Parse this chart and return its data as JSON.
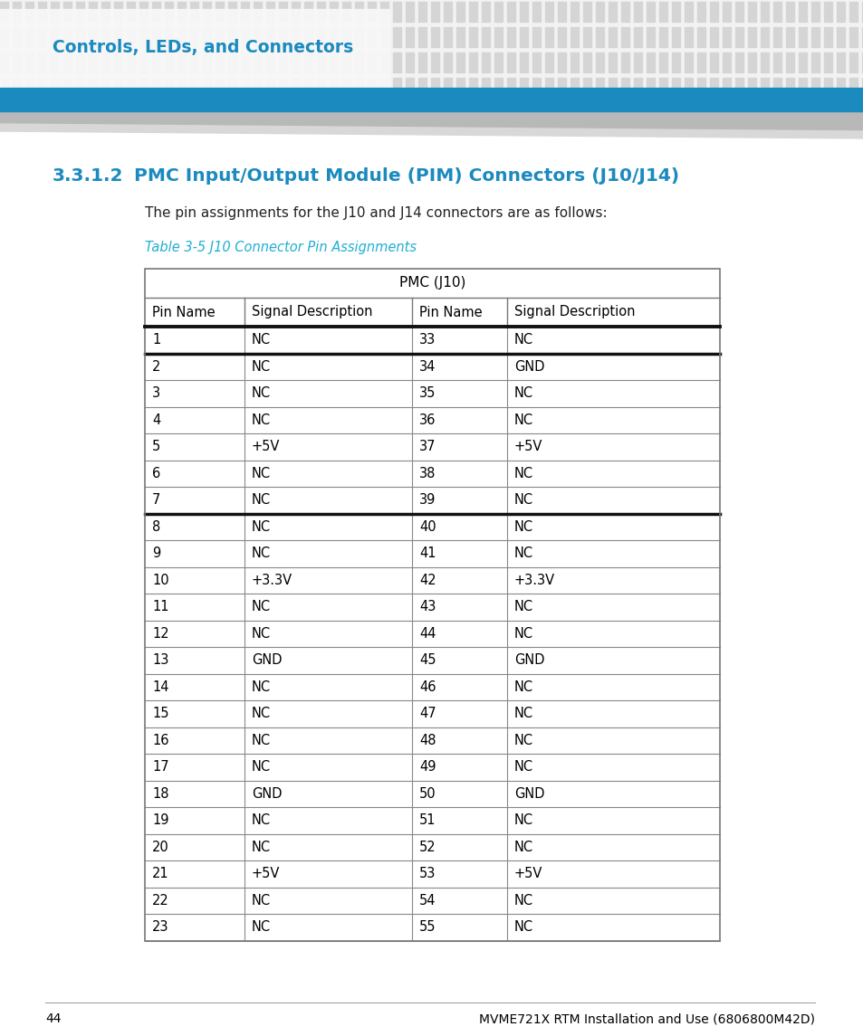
{
  "page_header": "Controls, LEDs, and Connectors",
  "section_num": "3.3.1.2",
  "section_title": "PMC Input/Output Module (PIM) Connectors (J10/J14)",
  "body_text": "The pin assignments for the J10 and J14 connectors are as follows:",
  "table_caption": "Table 3-5 J10 Connector Pin Assignments",
  "table_header_main": "PMC (J10)",
  "col_headers": [
    "Pin Name",
    "Signal Description",
    "Pin Name",
    "Signal Description"
  ],
  "rows": [
    [
      "1",
      "NC",
      "33",
      "NC"
    ],
    [
      "2",
      "NC",
      "34",
      "GND"
    ],
    [
      "3",
      "NC",
      "35",
      "NC"
    ],
    [
      "4",
      "NC",
      "36",
      "NC"
    ],
    [
      "5",
      "+5V",
      "37",
      "+5V"
    ],
    [
      "6",
      "NC",
      "38",
      "NC"
    ],
    [
      "7",
      "NC",
      "39",
      "NC"
    ],
    [
      "8",
      "NC",
      "40",
      "NC"
    ],
    [
      "9",
      "NC",
      "41",
      "NC"
    ],
    [
      "10",
      "+3.3V",
      "42",
      "+3.3V"
    ],
    [
      "11",
      "NC",
      "43",
      "NC"
    ],
    [
      "12",
      "NC",
      "44",
      "NC"
    ],
    [
      "13",
      "GND",
      "45",
      "GND"
    ],
    [
      "14",
      "NC",
      "46",
      "NC"
    ],
    [
      "15",
      "NC",
      "47",
      "NC"
    ],
    [
      "16",
      "NC",
      "48",
      "NC"
    ],
    [
      "17",
      "NC",
      "49",
      "NC"
    ],
    [
      "18",
      "GND",
      "50",
      "GND"
    ],
    [
      "19",
      "NC",
      "51",
      "NC"
    ],
    [
      "20",
      "NC",
      "52",
      "NC"
    ],
    [
      "21",
      "+5V",
      "53",
      "+5V"
    ],
    [
      "22",
      "NC",
      "54",
      "NC"
    ],
    [
      "23",
      "NC",
      "55",
      "NC"
    ]
  ],
  "thick_rows_after": [
    0,
    6
  ],
  "page_num": "44",
  "footer_text": "MVME721X RTM Installation and Use (6806800M42D)",
  "blue_bar_color": "#1a8abf",
  "section_num_color": "#1a8abf",
  "section_title_color": "#1a8abf",
  "table_caption_color": "#20b0d0",
  "body_text_color": "#222222",
  "stripe_color": "#d5d5d5",
  "stripe_bg": "#f2f2f2",
  "grid_color": "#aaaaaa",
  "thick_color": "#111111"
}
